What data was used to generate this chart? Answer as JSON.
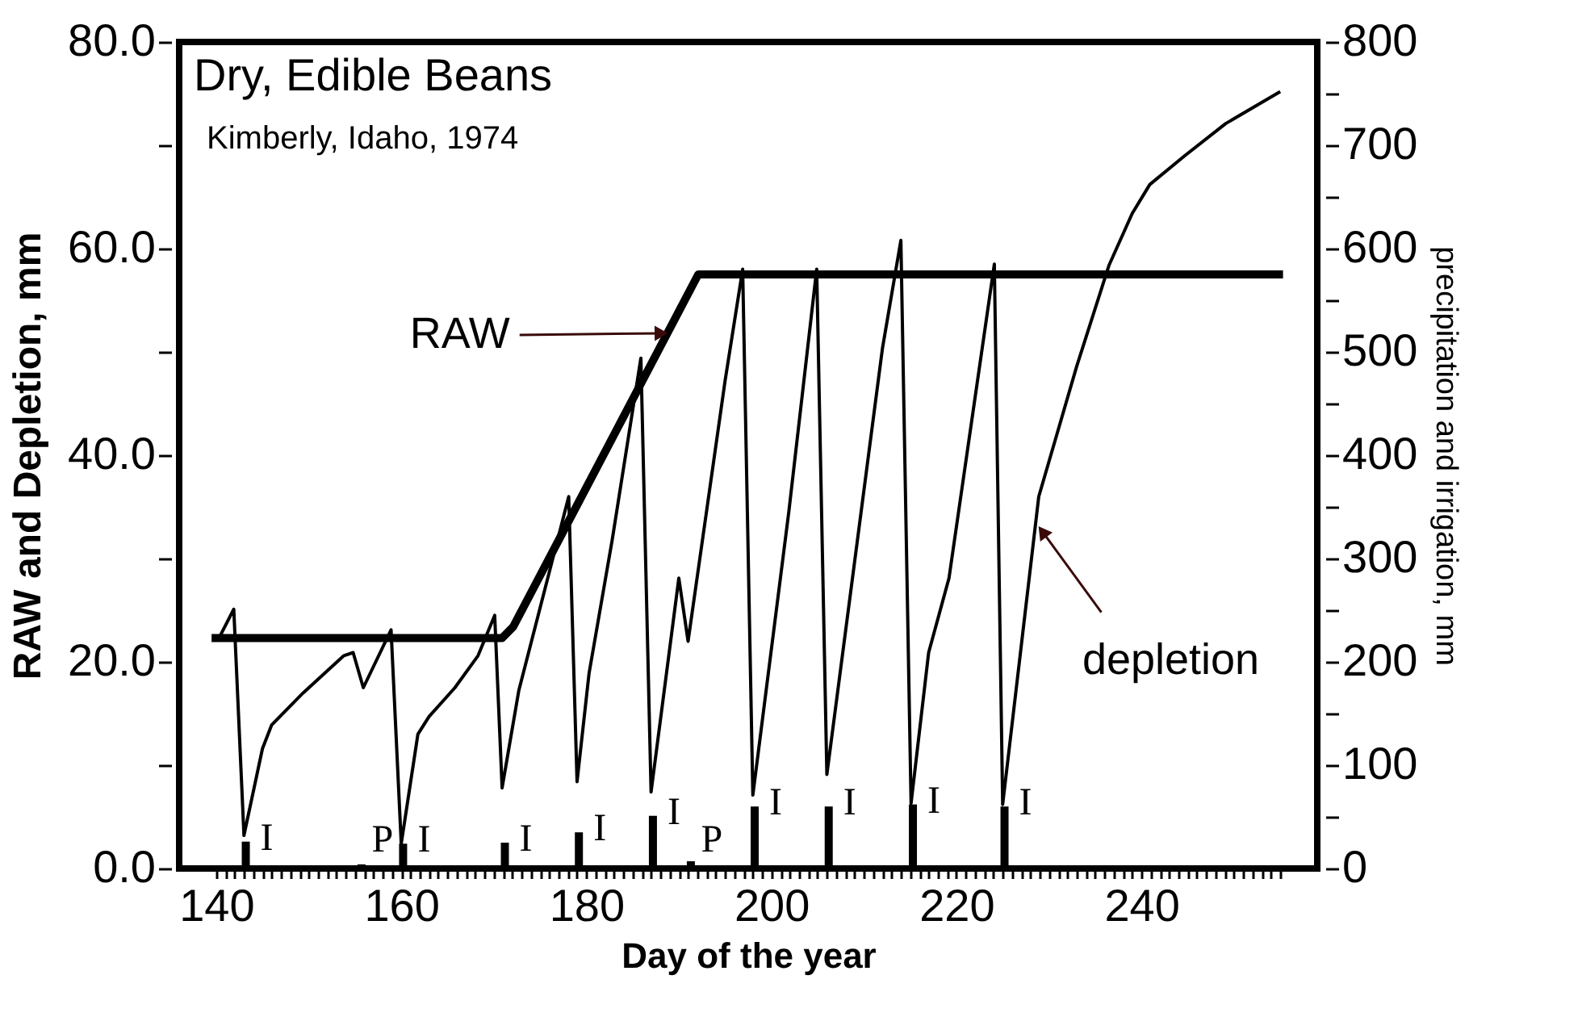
{
  "chart_data": {
    "type": "line",
    "title": "Dry, Edible Beans",
    "subtitle": "Kimberly, Idaho, 1974",
    "xlabel": "Day of the year",
    "ylabel": "RAW and Depletion, mm",
    "y2label": "precipitation and irrigation, mm",
    "xlim": [
      136,
      259
    ],
    "ylim": [
      0,
      80
    ],
    "y2lim": [
      0,
      800
    ],
    "xticks": [
      140,
      {
        "value": 141,
        "label": null
      },
      {
        "value": 142,
        "label": null
      },
      {
        "value": 143,
        "label": null
      },
      {
        "value": 144,
        "label": null
      },
      {
        "value": 145,
        "label": null
      },
      {
        "value": 146,
        "label": null
      },
      {
        "value": 147,
        "label": null
      },
      {
        "value": 148,
        "label": null
      },
      {
        "value": 149,
        "label": null
      },
      {
        "value": 150,
        "label": null
      },
      {
        "value": 151,
        "label": null
      },
      {
        "value": 152,
        "label": null
      },
      {
        "value": 153,
        "label": null
      },
      {
        "value": 154,
        "label": null
      },
      {
        "value": 155,
        "label": null
      },
      {
        "value": 156,
        "label": null
      },
      {
        "value": 157,
        "label": null
      },
      {
        "value": 158,
        "label": null
      },
      {
        "value": 159,
        "label": null
      },
      160,
      {
        "value": 161,
        "label": null
      },
      {
        "value": 162,
        "label": null
      },
      {
        "value": 163,
        "label": null
      },
      {
        "value": 164,
        "label": null
      },
      {
        "value": 165,
        "label": null
      },
      {
        "value": 166,
        "label": null
      },
      {
        "value": 167,
        "label": null
      },
      {
        "value": 168,
        "label": null
      },
      {
        "value": 169,
        "label": null
      },
      {
        "value": 170,
        "label": null
      },
      {
        "value": 171,
        "label": null
      },
      {
        "value": 172,
        "label": null
      },
      {
        "value": 173,
        "label": null
      },
      {
        "value": 174,
        "label": null
      },
      {
        "value": 175,
        "label": null
      },
      {
        "value": 176,
        "label": null
      },
      {
        "value": 177,
        "label": null
      },
      {
        "value": 178,
        "label": null
      },
      {
        "value": 179,
        "label": null
      },
      180,
      {
        "value": 181,
        "label": null
      },
      {
        "value": 182,
        "label": null
      },
      {
        "value": 183,
        "label": null
      },
      {
        "value": 184,
        "label": null
      },
      {
        "value": 185,
        "label": null
      },
      {
        "value": 186,
        "label": null
      },
      {
        "value": 187,
        "label": null
      },
      {
        "value": 188,
        "label": null
      },
      {
        "value": 189,
        "label": null
      },
      {
        "value": 190,
        "label": null
      },
      {
        "value": 191,
        "label": null
      },
      {
        "value": 192,
        "label": null
      },
      {
        "value": 193,
        "label": null
      },
      {
        "value": 194,
        "label": null
      },
      {
        "value": 195,
        "label": null
      },
      {
        "value": 196,
        "label": null
      },
      {
        "value": 197,
        "label": null
      },
      {
        "value": 198,
        "label": null
      },
      {
        "value": 199,
        "label": null
      },
      200,
      {
        "value": 201,
        "label": null
      },
      {
        "value": 202,
        "label": null
      },
      {
        "value": 203,
        "label": null
      },
      {
        "value": 204,
        "label": null
      },
      {
        "value": 205,
        "label": null
      },
      {
        "value": 206,
        "label": null
      },
      {
        "value": 207,
        "label": null
      },
      {
        "value": 208,
        "label": null
      },
      {
        "value": 209,
        "label": null
      },
      {
        "value": 210,
        "label": null
      },
      {
        "value": 211,
        "label": null
      },
      {
        "value": 212,
        "label": null
      },
      {
        "value": 213,
        "label": null
      },
      {
        "value": 214,
        "label": null
      },
      {
        "value": 215,
        "label": null
      },
      {
        "value": 216,
        "label": null
      },
      {
        "value": 217,
        "label": null
      },
      {
        "value": 218,
        "label": null
      },
      {
        "value": 219,
        "label": null
      },
      220,
      {
        "value": 221,
        "label": null
      },
      {
        "value": 222,
        "label": null
      },
      {
        "value": 223,
        "label": null
      },
      {
        "value": 224,
        "label": null
      },
      {
        "value": 225,
        "label": null
      },
      {
        "value": 226,
        "label": null
      },
      {
        "value": 227,
        "label": null
      },
      {
        "value": 228,
        "label": null
      },
      {
        "value": 229,
        "label": null
      },
      {
        "value": 230,
        "label": null
      },
      {
        "value": 231,
        "label": null
      },
      {
        "value": 232,
        "label": null
      },
      {
        "value": 233,
        "label": null
      },
      {
        "value": 234,
        "label": null
      },
      {
        "value": 235,
        "label": null
      },
      {
        "value": 236,
        "label": null
      },
      {
        "value": 237,
        "label": null
      },
      {
        "value": 238,
        "label": null
      },
      {
        "value": 239,
        "label": null
      },
      240,
      {
        "value": 241,
        "label": null
      },
      {
        "value": 242,
        "label": null
      },
      {
        "value": 243,
        "label": null
      },
      {
        "value": 244,
        "label": null
      },
      {
        "value": 245,
        "label": null
      },
      {
        "value": 246,
        "label": null
      },
      {
        "value": 247,
        "label": null
      },
      {
        "value": 248,
        "label": null
      },
      {
        "value": 249,
        "label": null
      },
      {
        "value": 250,
        "label": null
      },
      {
        "value": 251,
        "label": null
      },
      {
        "value": 252,
        "label": null
      },
      {
        "value": 253,
        "label": null
      },
      {
        "value": 254,
        "label": null
      },
      {
        "value": 255,
        "label": null
      }
    ],
    "yticks": [
      {
        "value": 0,
        "label": "0.0"
      },
      {
        "value": 10,
        "label": null
      },
      {
        "value": 20,
        "label": "20.0"
      },
      {
        "value": 30,
        "label": null
      },
      {
        "value": 40,
        "label": "40.0"
      },
      {
        "value": 50,
        "label": null
      },
      {
        "value": 60,
        "label": "60.0"
      },
      {
        "value": 70,
        "label": null
      },
      {
        "value": 80,
        "label": "80.0"
      }
    ],
    "y2ticks": [
      0,
      {
        "value": 50,
        "label": null
      },
      100,
      {
        "value": 150,
        "label": null
      },
      200,
      {
        "value": 250,
        "label": null
      },
      300,
      {
        "value": 350,
        "label": null
      },
      400,
      {
        "value": 450,
        "label": null
      },
      500,
      {
        "value": 550,
        "label": null
      },
      600,
      {
        "value": 650,
        "label": null
      },
      700,
      {
        "value": 750,
        "label": null
      },
      800
    ],
    "series": [
      {
        "color": "#000000",
        "x": [
          139.5,
          170.9,
          172.1,
          192.1,
          255.3
        ],
        "values": [
          22.3,
          22.3,
          23.4,
          57.5,
          57.5
        ]
      },
      {
        "color": "#000000",
        "x": [
          140.3,
          141.9,
          143.0,
          145.0,
          146.0,
          149.4,
          153.8,
          154.8,
          155.9,
          158.9,
          160.0,
          161.8,
          163.0,
          165.8,
          168.3,
          170.1,
          170.9,
          172.7,
          178.1,
          179.0,
          180.3,
          182.8,
          185.9,
          187.0,
          190.0,
          191.0,
          195.0,
          196.9,
          198.0,
          201.9,
          204.9,
          206.0,
          212.0,
          214.0,
          215.1,
          217.0,
          219.2,
          224.1,
          225.0,
          228.9,
          233.0,
          236.5,
          239.0,
          240.9,
          244.7,
          249.1,
          255.0
        ],
        "values": [
          22.3,
          25.1,
          3.2,
          11.6,
          13.9,
          17.0,
          20.6,
          20.9,
          17.5,
          23.1,
          2.4,
          13.0,
          14.7,
          17.5,
          20.6,
          24.5,
          7.8,
          17.2,
          36.0,
          8.4,
          18.9,
          31.8,
          49.4,
          7.4,
          28.1,
          22.0,
          47.2,
          58.0,
          7.1,
          34.6,
          58.0,
          9.1,
          50.3,
          60.8,
          6.3,
          20.9,
          28.1,
          58.5,
          6.2,
          36.0,
          48.6,
          58.4,
          63.4,
          66.2,
          69.0,
          72.1,
          75.2
        ]
      },
      {
        "type": "bar",
        "axis": "y2",
        "color": "#000000",
        "x": [
          143.2,
          155.7,
          160.2,
          171.2,
          179.2,
          187.2,
          191.3,
          198.2,
          206.2,
          215.3,
          225.2
        ],
        "values": [
          26,
          4,
          24,
          25,
          35,
          51,
          7,
          60,
          60,
          62,
          60
        ],
        "value_labels": [
          "I",
          "P",
          "I",
          "I",
          "I",
          "I",
          "P",
          "I",
          "I",
          "I",
          "I"
        ]
      }
    ],
    "annotations": [
      {
        "text": "RAW",
        "x": 188.1,
        "y": 51.8
      },
      {
        "text": "depletion",
        "x": 229.3,
        "y": 32.6
      }
    ]
  }
}
